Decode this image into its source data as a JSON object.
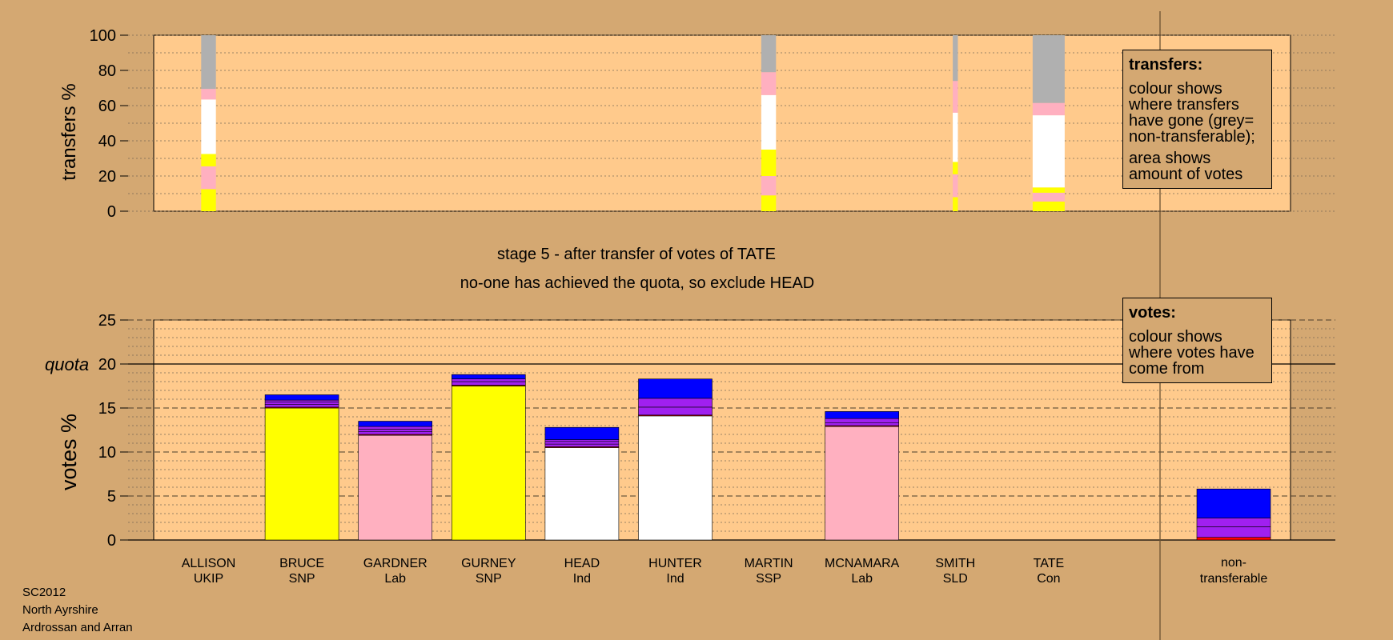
{
  "colors": {
    "background": "#d4a872",
    "plot": "#ffca8c",
    "SNP": "#ffff00",
    "Lab": "#ffb0c0",
    "Ind": "#ffffff",
    "UKIP": "#a020f0",
    "Con": "#0000ff",
    "SLD": "#ff8c00",
    "SSP": "#ff0000",
    "nontransferable": "#b0b0b0"
  },
  "legend_transfers": {
    "title": "transfers:",
    "text1": "colour shows where transfers have gone (grey= non-transferable);",
    "text2": "area shows amount of votes"
  },
  "legend_votes": {
    "title": "votes:",
    "text1": "colour shows where votes have come from"
  },
  "stage_title": "stage 5 - after transfer of votes of TATE",
  "stage_subtitle": "no-one has achieved the quota, so exclude HEAD",
  "footer": {
    "line1": "SC2012",
    "line2": "North Ayrshire",
    "line3": "Ardrossan and Arran"
  },
  "chart_data": [
    {
      "type": "bar",
      "name": "transfers",
      "ylabel": "transfers %",
      "ylim": [
        0,
        100
      ],
      "yticks": [
        0,
        20,
        40,
        60,
        80,
        100
      ],
      "grid": true,
      "transfers": [
        {
          "from": "ALLISON",
          "size": 2.3,
          "segments": [
            {
              "party": "SNP",
              "value": 12.5
            },
            {
              "party": "Lab",
              "value": 13
            },
            {
              "party": "SNP",
              "value": 7
            },
            {
              "party": "Ind",
              "value": 31
            },
            {
              "party": "Lab",
              "value": 6
            },
            {
              "party": "nontransferable",
              "value": 30.5
            }
          ]
        },
        {
          "from": "MARTIN",
          "size": 2.3,
          "segments": [
            {
              "party": "SNP",
              "value": 9
            },
            {
              "party": "Lab",
              "value": 11
            },
            {
              "party": "SNP",
              "value": 15
            },
            {
              "party": "Ind",
              "value": 31
            },
            {
              "party": "Lab",
              "value": 13
            },
            {
              "party": "nontransferable",
              "value": 21
            }
          ]
        },
        {
          "from": "SMITH",
          "size": 0.8,
          "segments": [
            {
              "party": "SNP",
              "value": 8
            },
            {
              "party": "Lab",
              "value": 13
            },
            {
              "party": "SNP",
              "value": 7
            },
            {
              "party": "Ind",
              "value": 28
            },
            {
              "party": "Lab",
              "value": 18
            },
            {
              "party": "nontransferable",
              "value": 26
            }
          ]
        },
        {
          "from": "TATE",
          "size": 5.0,
          "segments": [
            {
              "party": "SNP",
              "value": 5.5
            },
            {
              "party": "Lab",
              "value": 5
            },
            {
              "party": "SNP",
              "value": 3
            },
            {
              "party": "Ind",
              "value": 41
            },
            {
              "party": "Lab",
              "value": 7
            },
            {
              "party": "nontransferable",
              "value": 38.5
            }
          ]
        }
      ]
    },
    {
      "type": "bar",
      "name": "votes",
      "ylabel": "votes %",
      "ylim": [
        0,
        25
      ],
      "yticks": [
        0,
        5,
        10,
        15,
        20,
        25
      ],
      "quota": 20,
      "quota_label": "quota",
      "grid": true,
      "categories": [
        {
          "name": "ALLISON",
          "party": "UKIP"
        },
        {
          "name": "BRUCE",
          "party": "SNP"
        },
        {
          "name": "GARDNER",
          "party": "Lab"
        },
        {
          "name": "GURNEY",
          "party": "SNP"
        },
        {
          "name": "HEAD",
          "party": "Ind"
        },
        {
          "name": "HUNTER",
          "party": "Ind"
        },
        {
          "name": "MARTIN",
          "party": "SSP"
        },
        {
          "name": "MCNAMARA",
          "party": "Lab"
        },
        {
          "name": "SMITH",
          "party": "SLD"
        },
        {
          "name": "TATE",
          "party": "Con"
        }
      ],
      "nontransferable_label_1": "non-",
      "nontransferable_label_2": "transferable",
      "stacks": [
        [],
        [
          {
            "party": "SNP",
            "value": 15.0
          },
          {
            "party": "SSP",
            "value": 0.1
          },
          {
            "party": "UKIP",
            "value": 0.3
          },
          {
            "party": "UKIP",
            "value": 0.3
          },
          {
            "party": "UKIP",
            "value": 0.2
          },
          {
            "party": "Con",
            "value": 0.6
          }
        ],
        [
          {
            "party": "Lab",
            "value": 11.9
          },
          {
            "party": "SSP",
            "value": 0.1
          },
          {
            "party": "UKIP",
            "value": 0.3
          },
          {
            "party": "UKIP",
            "value": 0.3
          },
          {
            "party": "UKIP",
            "value": 0.3
          },
          {
            "party": "Con",
            "value": 0.6
          }
        ],
        [
          {
            "party": "SNP",
            "value": 17.5
          },
          {
            "party": "SSP",
            "value": 0.1
          },
          {
            "party": "UKIP",
            "value": 0.4
          },
          {
            "party": "UKIP",
            "value": 0.3
          },
          {
            "party": "Con",
            "value": 0.5
          }
        ],
        [
          {
            "party": "Ind",
            "value": 10.5
          },
          {
            "party": "SSP",
            "value": 0.1
          },
          {
            "party": "UKIP",
            "value": 0.3
          },
          {
            "party": "UKIP",
            "value": 0.3
          },
          {
            "party": "UKIP",
            "value": 0.2
          },
          {
            "party": "Con",
            "value": 1.4
          }
        ],
        [
          {
            "party": "Ind",
            "value": 14.1
          },
          {
            "party": "SSP",
            "value": 0.1
          },
          {
            "party": "UKIP",
            "value": 0.9
          },
          {
            "party": "UKIP",
            "value": 1.0
          },
          {
            "party": "Con",
            "value": 2.2
          }
        ],
        [],
        [
          {
            "party": "Lab",
            "value": 12.9
          },
          {
            "party": "SSP",
            "value": 0.1
          },
          {
            "party": "UKIP",
            "value": 0.3
          },
          {
            "party": "UKIP",
            "value": 0.5
          },
          {
            "party": "Con",
            "value": 0.8
          }
        ],
        [],
        []
      ],
      "nontransferable_stack": [
        {
          "party": "SSP",
          "value": 0.3
        },
        {
          "party": "UKIP",
          "value": 1.2
        },
        {
          "party": "UKIP",
          "value": 1.0
        },
        {
          "party": "Con",
          "value": 3.3
        }
      ]
    }
  ]
}
